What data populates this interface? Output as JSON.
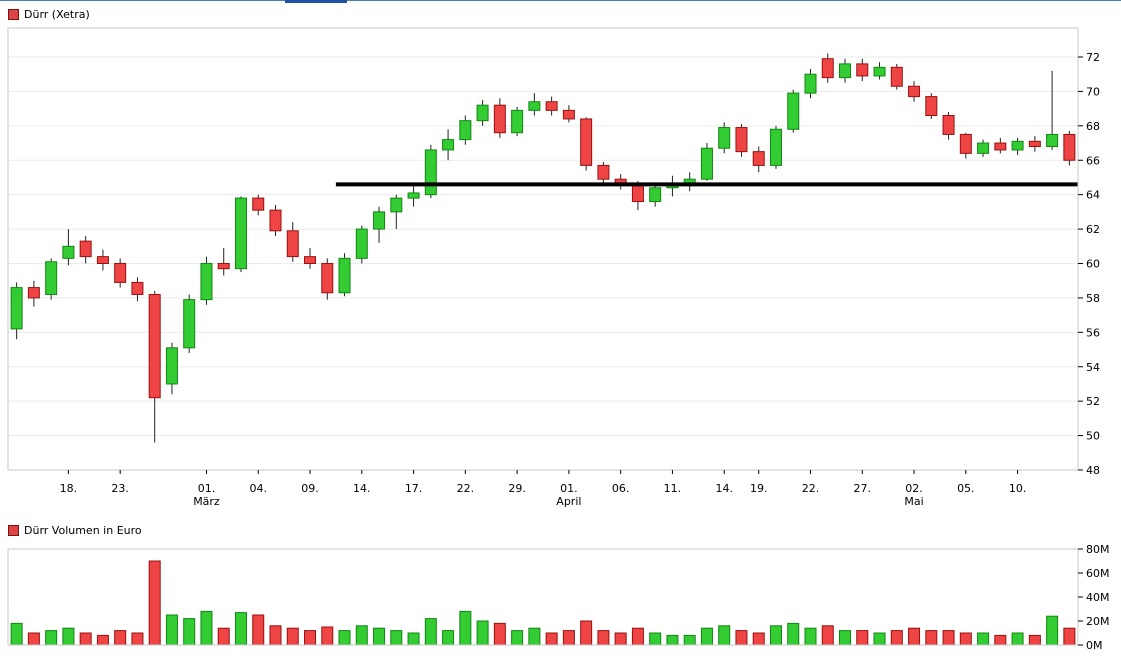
{
  "legend": {
    "price_title": "Dürr (Xetra)",
    "volume_title": "Dürr Volumen in Euro"
  },
  "colors": {
    "up_fill": "#33cc33",
    "up_edge": "#118811",
    "down_fill": "#ee4444",
    "down_edge": "#991111",
    "wick": "#222222",
    "grid": "#ebebeb",
    "axis": "#c8c8c8",
    "support": "#000000",
    "legend_swatch": "#dd4444",
    "legend_swatch_edge": "#7a1111",
    "top_line": "#4a7ebb"
  },
  "chart_data": {
    "type": "candlestick",
    "title": "Dürr (Xetra)",
    "subtitle": "Dürr Volumen in Euro",
    "legend_position": "top-left",
    "grid": "horizontal-light",
    "price_axis": {
      "side": "right",
      "min": 48,
      "max": 72,
      "ticks": [
        48,
        50,
        52,
        54,
        56,
        58,
        60,
        62,
        64,
        66,
        68,
        70,
        72
      ]
    },
    "x_ticks": [
      {
        "index": 3,
        "label": "18."
      },
      {
        "index": 6,
        "label": "23."
      },
      {
        "index": 11,
        "label": "01.",
        "month": "März"
      },
      {
        "index": 14,
        "label": "04."
      },
      {
        "index": 17,
        "label": "09."
      },
      {
        "index": 20,
        "label": "14."
      },
      {
        "index": 23,
        "label": "17."
      },
      {
        "index": 26,
        "label": "22."
      },
      {
        "index": 29,
        "label": "29."
      },
      {
        "index": 32,
        "label": "01.",
        "month": "April"
      },
      {
        "index": 35,
        "label": "06."
      },
      {
        "index": 38,
        "label": "11."
      },
      {
        "index": 41,
        "label": "14."
      },
      {
        "index": 43,
        "label": "19."
      },
      {
        "index": 46,
        "label": "22."
      },
      {
        "index": 49,
        "label": "27."
      },
      {
        "index": 52,
        "label": "02.",
        "month": "Mai"
      },
      {
        "index": 55,
        "label": "05."
      },
      {
        "index": 58,
        "label": "10."
      }
    ],
    "support_line": {
      "price": 64.6,
      "start_index": 19,
      "color": "#000000",
      "width": 4
    },
    "candles_format": [
      "open",
      "high",
      "low",
      "close"
    ],
    "candles": [
      [
        56.2,
        58.9,
        55.6,
        58.6
      ],
      [
        58.6,
        59.0,
        57.5,
        58.0
      ],
      [
        58.2,
        60.3,
        57.9,
        60.1
      ],
      [
        60.3,
        62.0,
        59.9,
        61.0
      ],
      [
        61.3,
        61.6,
        60.0,
        60.4
      ],
      [
        60.4,
        60.8,
        59.6,
        60.0
      ],
      [
        60.0,
        60.3,
        58.6,
        58.9
      ],
      [
        58.9,
        59.2,
        57.8,
        58.2
      ],
      [
        58.2,
        58.4,
        49.6,
        52.2
      ],
      [
        53.0,
        55.4,
        52.4,
        55.1
      ],
      [
        55.1,
        58.2,
        54.8,
        57.9
      ],
      [
        57.9,
        60.4,
        57.6,
        60.0
      ],
      [
        60.0,
        60.9,
        59.3,
        59.7
      ],
      [
        59.7,
        63.9,
        59.5,
        63.8
      ],
      [
        63.8,
        64.0,
        62.8,
        63.1
      ],
      [
        63.1,
        63.4,
        61.6,
        61.9
      ],
      [
        61.9,
        62.4,
        60.1,
        60.4
      ],
      [
        60.4,
        60.9,
        59.7,
        60.0
      ],
      [
        60.0,
        60.3,
        57.9,
        58.3
      ],
      [
        58.3,
        60.6,
        58.1,
        60.3
      ],
      [
        60.3,
        62.2,
        60.0,
        62.0
      ],
      [
        62.0,
        63.3,
        61.2,
        63.0
      ],
      [
        63.0,
        64.0,
        62.0,
        63.8
      ],
      [
        63.8,
        64.6,
        63.3,
        64.1
      ],
      [
        64.0,
        66.9,
        63.8,
        66.6
      ],
      [
        66.6,
        67.8,
        66.0,
        67.2
      ],
      [
        67.2,
        68.6,
        66.9,
        68.3
      ],
      [
        68.3,
        69.5,
        68.0,
        69.2
      ],
      [
        69.2,
        69.6,
        67.3,
        67.6
      ],
      [
        67.6,
        69.1,
        67.4,
        68.9
      ],
      [
        68.9,
        69.9,
        68.6,
        69.4
      ],
      [
        69.4,
        69.7,
        68.6,
        68.9
      ],
      [
        68.9,
        69.2,
        68.2,
        68.4
      ],
      [
        68.4,
        68.5,
        65.4,
        65.7
      ],
      [
        65.7,
        65.9,
        64.6,
        64.9
      ],
      [
        64.9,
        65.2,
        64.3,
        64.6
      ],
      [
        64.6,
        64.8,
        63.1,
        63.6
      ],
      [
        63.6,
        64.6,
        63.3,
        64.4
      ],
      [
        64.4,
        65.1,
        63.9,
        64.6
      ],
      [
        64.6,
        65.3,
        64.2,
        64.9
      ],
      [
        64.9,
        67.0,
        64.8,
        66.7
      ],
      [
        66.7,
        68.2,
        66.4,
        67.9
      ],
      [
        67.9,
        68.1,
        66.2,
        66.5
      ],
      [
        66.5,
        66.8,
        65.3,
        65.7
      ],
      [
        65.7,
        68.0,
        65.5,
        67.8
      ],
      [
        67.8,
        70.1,
        67.6,
        69.9
      ],
      [
        69.9,
        71.3,
        69.6,
        71.0
      ],
      [
        71.9,
        72.2,
        70.5,
        70.8
      ],
      [
        70.8,
        71.9,
        70.5,
        71.6
      ],
      [
        71.6,
        71.9,
        70.6,
        70.9
      ],
      [
        70.9,
        71.7,
        70.7,
        71.4
      ],
      [
        71.4,
        71.6,
        70.1,
        70.3
      ],
      [
        70.3,
        70.6,
        69.4,
        69.7
      ],
      [
        69.7,
        69.9,
        68.4,
        68.6
      ],
      [
        68.6,
        68.8,
        67.2,
        67.5
      ],
      [
        67.5,
        67.6,
        66.1,
        66.4
      ],
      [
        66.4,
        67.2,
        66.2,
        67.0
      ],
      [
        67.0,
        67.3,
        66.4,
        66.6
      ],
      [
        66.6,
        67.3,
        66.3,
        67.1
      ],
      [
        67.1,
        67.4,
        66.5,
        66.8
      ],
      [
        66.8,
        71.2,
        66.6,
        67.5
      ],
      [
        67.5,
        67.7,
        65.7,
        66.0
      ]
    ],
    "volume": {
      "title": "Dürr Volumen in Euro",
      "unit": "M",
      "max": 80,
      "axis_ticks": [
        {
          "label": "80M",
          "value": 80
        },
        {
          "label": "60M",
          "value": 60
        },
        {
          "label": "40M",
          "value": 40
        },
        {
          "label": "20M",
          "value": 20
        },
        {
          "label": "0M",
          "value": 0
        }
      ],
      "values_millions": [
        18,
        10,
        12,
        14,
        10,
        8,
        12,
        10,
        70,
        25,
        22,
        28,
        14,
        27,
        25,
        16,
        14,
        12,
        15,
        12,
        16,
        14,
        12,
        10,
        22,
        12,
        28,
        20,
        18,
        12,
        14,
        10,
        12,
        20,
        12,
        10,
        14,
        10,
        8,
        8,
        14,
        16,
        12,
        10,
        16,
        18,
        14,
        16,
        12,
        12,
        10,
        12,
        14,
        12,
        12,
        10,
        10,
        8,
        10,
        8,
        24,
        14
      ]
    }
  }
}
